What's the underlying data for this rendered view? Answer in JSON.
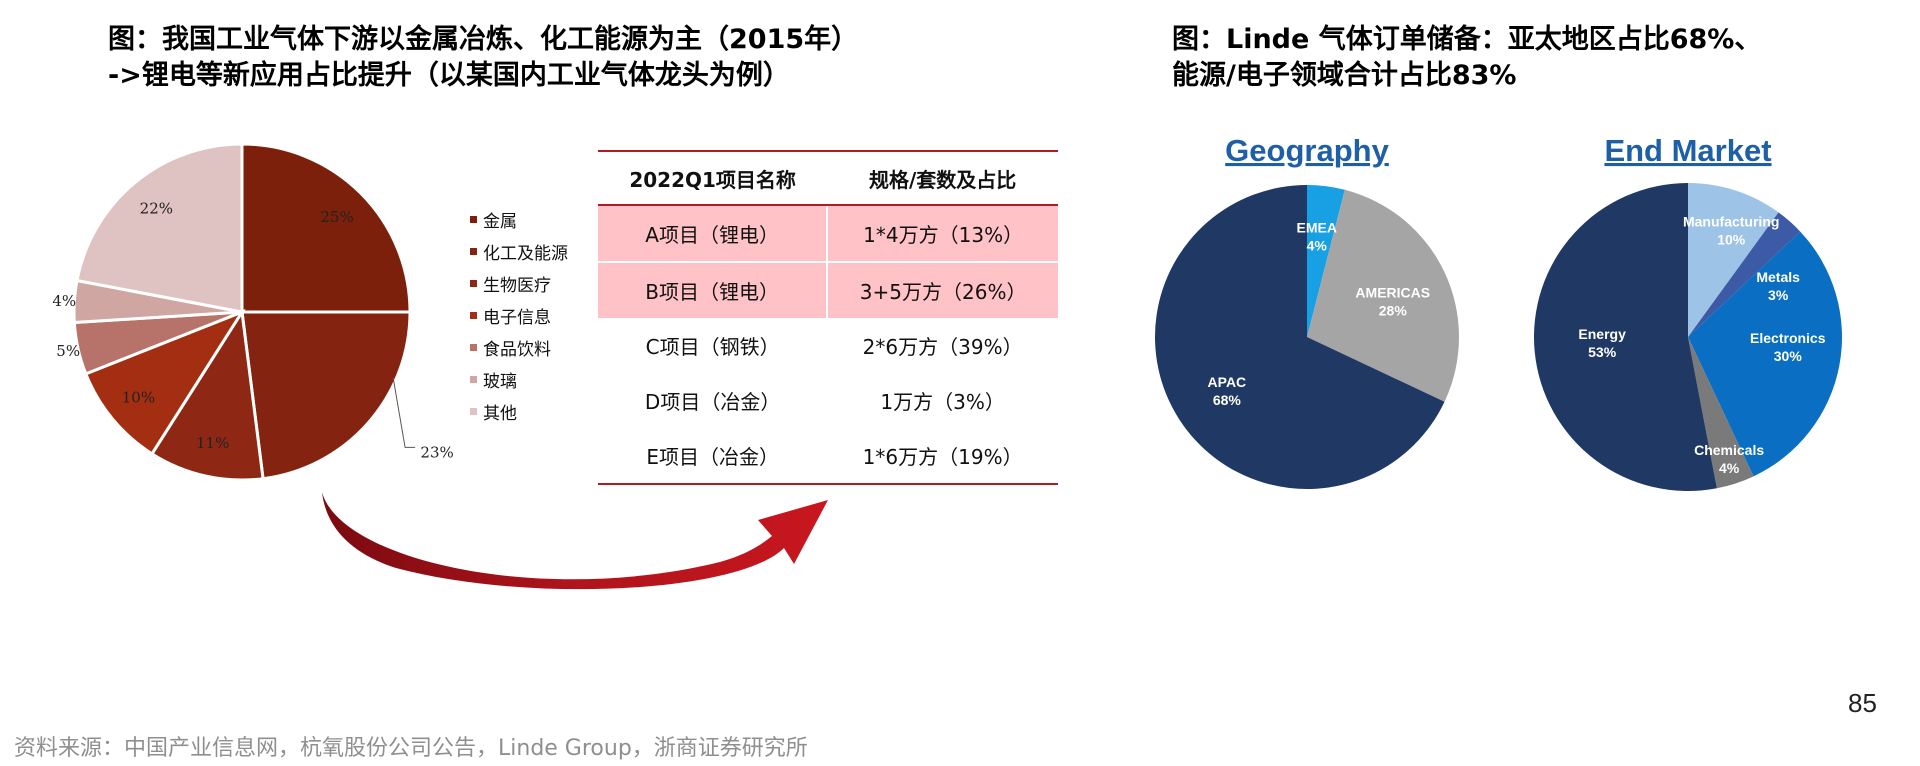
{
  "left_title": {
    "line1": "图：我国工业气体下游以金属冶炼、化工能源为主（2015年）",
    "line2": "->锂电等新应用占比提升（以某国内工业气体龙头为例）"
  },
  "right_title": {
    "line1": "图：Linde 气体订单储备：亚太地区占比68%、",
    "line2": "能源/电子领域合计占比83%"
  },
  "table": {
    "headers": [
      "2022Q1项目名称",
      "规格/套数及占比"
    ],
    "rows": [
      {
        "name": "A项目（锂电）",
        "spec": "1*4万方（13%）",
        "highlight": true
      },
      {
        "name": "B项目（锂电）",
        "spec": "3+5万方（26%）",
        "highlight": true
      },
      {
        "name": "C项目（钢铁）",
        "spec": "2*6万方（39%）",
        "highlight": false
      },
      {
        "name": "D项目（冶金）",
        "spec": "1万方（3%）",
        "highlight": false
      },
      {
        "name": "E项目（冶金）",
        "spec": "1*6万方（19%）",
        "highlight": false
      }
    ]
  },
  "chart_data": [
    {
      "type": "pie",
      "title": "",
      "legend_position": "right",
      "slices": [
        {
          "name": "金属",
          "value": 25,
          "label": "25%",
          "color": "#7c200b"
        },
        {
          "name": "化工及能源",
          "value": 23,
          "label": "23%",
          "color": "#842310"
        },
        {
          "name": "生物医疗",
          "value": 11,
          "label": "11%",
          "color": "#8e2815"
        },
        {
          "name": "电子信息",
          "value": 10,
          "label": "10%",
          "color": "#a32e12"
        },
        {
          "name": "食品饮料",
          "value": 5,
          "label": "5%",
          "color": "#b7736a"
        },
        {
          "name": "玻璃",
          "value": 4,
          "label": "4%",
          "color": "#d0a6a2"
        },
        {
          "name": "其他",
          "value": 22,
          "label": "22%",
          "color": "#dfc2c2"
        }
      ]
    },
    {
      "type": "pie",
      "title": "Geography",
      "slices": [
        {
          "name": "EMEA",
          "value": 4,
          "label": "4%",
          "color": "#17a0e3"
        },
        {
          "name": "AMERICAS",
          "value": 28,
          "label": "28%",
          "color": "#a5a5a5"
        },
        {
          "name": "APAC",
          "value": 68,
          "label": "68%",
          "color": "#1f3864"
        }
      ]
    },
    {
      "type": "pie",
      "title": "End Market",
      "slices": [
        {
          "name": "Manufacturing",
          "value": 10,
          "label": "10%",
          "color": "#9dc3e6"
        },
        {
          "name": "Metals",
          "value": 3,
          "label": "3%",
          "color": "#3c5aa6"
        },
        {
          "name": "Electronics",
          "value": 30,
          "label": "30%",
          "color": "#0a6fc2"
        },
        {
          "name": "Chemicals",
          "value": 4,
          "label": "4%",
          "color": "#7a7a7a"
        },
        {
          "name": "Energy",
          "value": 53,
          "label": "53%",
          "color": "#1f3864"
        }
      ]
    }
  ],
  "footer": {
    "source": "资料来源：中国产业信息网，杭氧股份公司公告，Linde Group，浙商证券研究所",
    "page_number": "85"
  }
}
